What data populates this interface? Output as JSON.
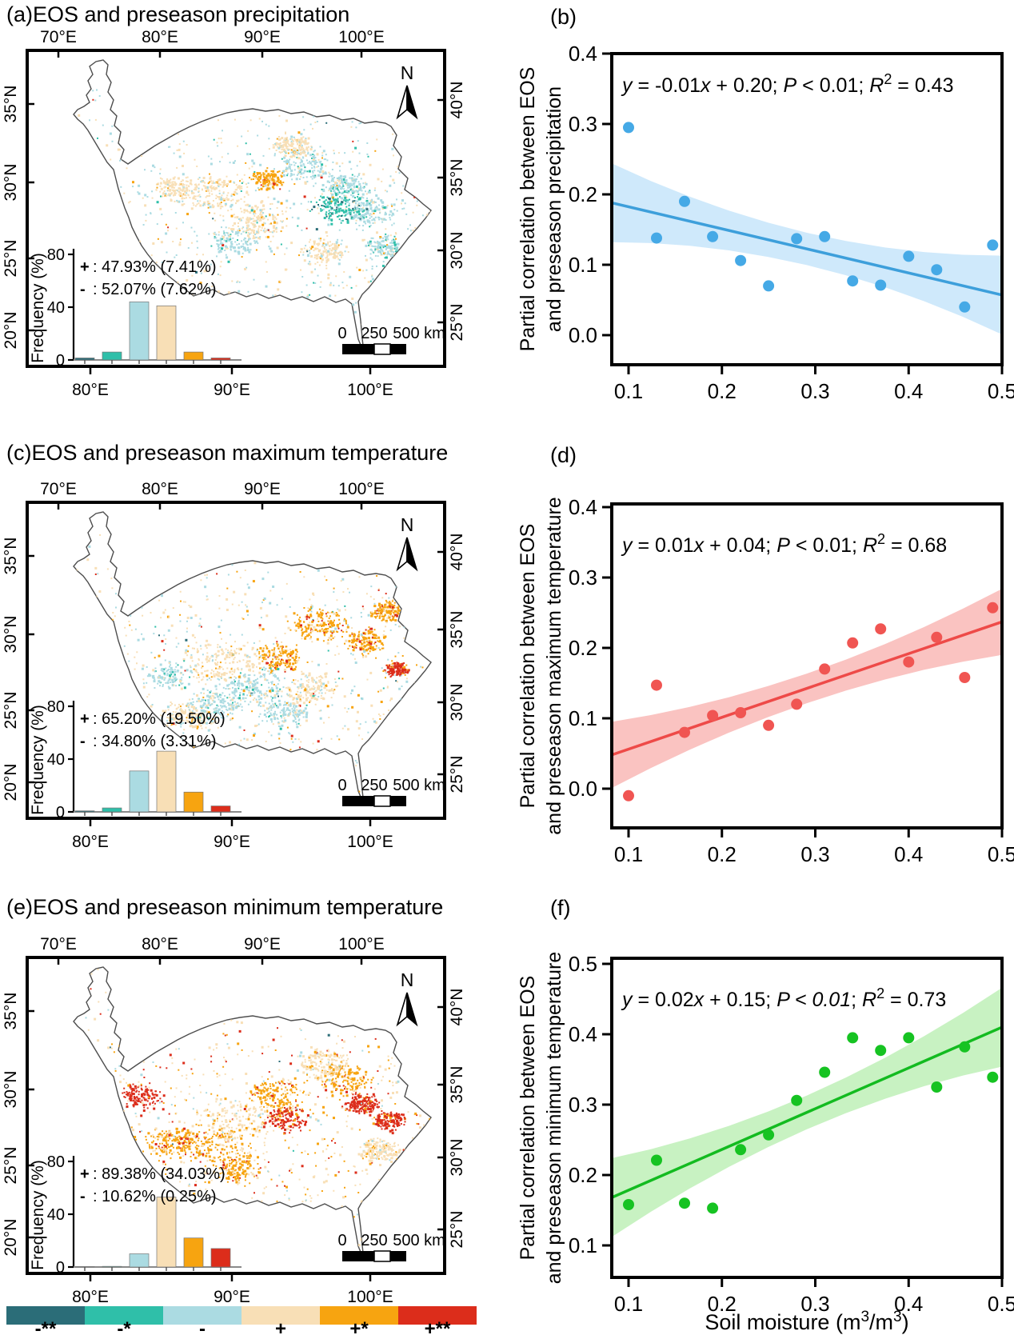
{
  "legend": {
    "labels": [
      "-**",
      "-*",
      "-",
      "+",
      "+*",
      "+**"
    ],
    "colors": [
      "#2b6d78",
      "#2fbfa9",
      "#abdbe2",
      "#f8dfb6",
      "#f7a410",
      "#dc2d1b"
    ]
  },
  "chart_data": [
    {
      "id": "a",
      "type": "map-histogram",
      "letter": "(a)",
      "title": "EOS and preseason precipitation",
      "axes": {
        "top": [
          "70°E",
          "80°E",
          "90°E",
          "100°E"
        ],
        "left": [
          "35°N",
          "30°N",
          "25°N",
          "20°N"
        ],
        "right": [
          "40°N",
          "35°N",
          "30°N",
          "25°N"
        ],
        "bottom": [
          "80°E",
          "90°E",
          "100°E"
        ]
      },
      "north_label": "N",
      "scale_bar": {
        "labels": [
          "0",
          "250",
          "500 km"
        ]
      },
      "histogram": {
        "ylabel": "Frequency (%)",
        "yticks": [
          "0",
          "40",
          "80"
        ],
        "categories": [
          "-**",
          "-*",
          "-",
          "+",
          "+*",
          "+**"
        ],
        "values": [
          1.5,
          6,
          44,
          41,
          6,
          1.5
        ]
      },
      "stats": {
        "plus_symbol": "+",
        "plus_text": ": 47.93% (7.41%)",
        "minus_symbol": "-",
        "minus_text": ": 52.07% (7.62%)"
      }
    },
    {
      "id": "b",
      "type": "scatter",
      "letter": "(b)",
      "ylabel_lines": [
        "Partial correlation between EOS",
        "and preseason precipitation"
      ],
      "equation_segments": [
        {
          "t": "y",
          "i": 1
        },
        {
          "t": " = -0.01",
          "i": 0
        },
        {
          "t": "x",
          "i": 1
        },
        {
          "t": " + 0.20; ",
          "i": 0
        },
        {
          "t": "P",
          "i": 1
        },
        {
          "t": " < 0.01; ",
          "i": 0
        },
        {
          "t": "R",
          "i": 1
        },
        {
          "t": "2",
          "i": 0,
          "sup": 1
        },
        {
          "t": " = 0.43",
          "i": 0
        }
      ],
      "xticks": [
        "0.1",
        "0.2",
        "0.3",
        "0.4",
        "0.5"
      ],
      "yticks": [
        "0.0",
        "0.1",
        "0.2",
        "0.3",
        "0.4"
      ],
      "x": [
        0.1,
        0.13,
        0.16,
        0.19,
        0.22,
        0.25,
        0.28,
        0.31,
        0.34,
        0.37,
        0.4,
        0.43,
        0.46,
        0.49
      ],
      "y": [
        0.295,
        0.138,
        0.19,
        0.14,
        0.106,
        0.07,
        0.137,
        0.14,
        0.077,
        0.071,
        0.112,
        0.093,
        0.04,
        0.128
      ],
      "fit": {
        "x0": 0.082,
        "y0": 0.188,
        "x1": 0.5,
        "y1": 0.057
      },
      "band": {
        "end_half": 0.056,
        "mid_half": 0.023
      },
      "colors": {
        "point": "#45a9e6",
        "line": "#3d9fdb",
        "band": "#cfe9fb"
      }
    },
    {
      "id": "c",
      "type": "map-histogram",
      "letter": "(c)",
      "title": "EOS and preseason maximum temperature",
      "axes": {
        "top": [
          "70°E",
          "80°E",
          "90°E",
          "100°E"
        ],
        "left": [
          "35°N",
          "30°N",
          "25°N",
          "20°N"
        ],
        "right": [
          "40°N",
          "35°N",
          "30°N",
          "25°N"
        ],
        "bottom": [
          "80°E",
          "90°E",
          "100°E"
        ]
      },
      "north_label": "N",
      "scale_bar": {
        "labels": [
          "0",
          "250",
          "500 km"
        ]
      },
      "histogram": {
        "ylabel": "Frequency (%)",
        "yticks": [
          "0",
          "40",
          "80"
        ],
        "categories": [
          "-**",
          "-*",
          "-",
          "+",
          "+*",
          "+**"
        ],
        "values": [
          0.8,
          3,
          31,
          46,
          15,
          4.5
        ]
      },
      "stats": {
        "plus_symbol": "+",
        "plus_text": ": 65.20% (19.50%)",
        "minus_symbol": "-",
        "minus_text": ": 34.80% (3.31%)"
      }
    },
    {
      "id": "d",
      "type": "scatter",
      "letter": "(d)",
      "ylabel_lines": [
        "Partial correlation between EOS",
        "and preseason maximum temperature"
      ],
      "equation_segments": [
        {
          "t": "y",
          "i": 1
        },
        {
          "t": " = 0.01",
          "i": 0
        },
        {
          "t": "x",
          "i": 1
        },
        {
          "t": " + 0.04; ",
          "i": 0
        },
        {
          "t": "P",
          "i": 1
        },
        {
          "t": " < 0.01; ",
          "i": 0
        },
        {
          "t": "R",
          "i": 1
        },
        {
          "t": "2",
          "i": 0,
          "sup": 1
        },
        {
          "t": " = 0.68",
          "i": 0
        }
      ],
      "xticks": [
        "0.1",
        "0.2",
        "0.3",
        "0.4",
        "0.5"
      ],
      "yticks": [
        "0.0",
        "0.1",
        "0.2",
        "0.3",
        "0.4"
      ],
      "x": [
        0.1,
        0.13,
        0.16,
        0.19,
        0.22,
        0.25,
        0.28,
        0.31,
        0.34,
        0.37,
        0.4,
        0.43,
        0.46,
        0.49
      ],
      "y": [
        -0.01,
        0.147,
        0.08,
        0.104,
        0.108,
        0.09,
        0.12,
        0.17,
        0.207,
        0.227,
        0.18,
        0.215,
        0.158,
        0.257
      ],
      "fit": {
        "x0": 0.082,
        "y0": 0.048,
        "x1": 0.5,
        "y1": 0.237
      },
      "band": {
        "end_half": 0.047,
        "mid_half": 0.021
      },
      "colors": {
        "point": "#f05552",
        "line": "#ee4a48",
        "band": "#fac3c1"
      }
    },
    {
      "id": "e",
      "type": "map-histogram",
      "letter": "(e)",
      "title": "EOS and preseason minimum temperature",
      "axes": {
        "top": [
          "70°E",
          "80°E",
          "90°E",
          "100°E"
        ],
        "left": [
          "35°N",
          "30°N",
          "25°N",
          "20°N"
        ],
        "right": [
          "40°N",
          "35°N",
          "30°N",
          "25°N"
        ],
        "bottom": [
          "80°E",
          "90°E",
          "100°E"
        ]
      },
      "north_label": "N",
      "scale_bar": {
        "labels": [
          "0",
          "250",
          "500 km"
        ]
      },
      "histogram": {
        "ylabel": "Frequency (%)",
        "yticks": [
          "0",
          "40",
          "80"
        ],
        "categories": [
          "-**",
          "-*",
          "-",
          "+",
          "+*",
          "+**"
        ],
        "values": [
          0.3,
          0.5,
          10,
          53,
          22,
          14
        ]
      },
      "stats": {
        "plus_symbol": "+",
        "plus_text": ": 89.38% (34.03%)",
        "minus_symbol": "-",
        "minus_text": ": 10.62% (0.25%)"
      }
    },
    {
      "id": "f",
      "type": "scatter",
      "letter": "(f)",
      "ylabel_lines": [
        "Partial correlation between EOS",
        "and preseason minimum temperature"
      ],
      "equation_segments": [
        {
          "t": "y",
          "i": 1
        },
        {
          "t": " = 0.02",
          "i": 0
        },
        {
          "t": "x",
          "i": 1
        },
        {
          "t": " + 0.15; ",
          "i": 0
        },
        {
          "t": "P < 0.01",
          "i": 1
        },
        {
          "t": "; ",
          "i": 0
        },
        {
          "t": "R",
          "i": 1
        },
        {
          "t": "2",
          "i": 0,
          "sup": 1
        },
        {
          "t": " = 0.73",
          "i": 0
        }
      ],
      "xticks": [
        "0.1",
        "0.2",
        "0.3",
        "0.4",
        "0.5"
      ],
      "yticks": [
        "0.1",
        "0.2",
        "0.3",
        "0.4",
        "0.5"
      ],
      "x": [
        0.1,
        0.13,
        0.16,
        0.19,
        0.22,
        0.25,
        0.28,
        0.31,
        0.34,
        0.37,
        0.4,
        0.43,
        0.46,
        0.49
      ],
      "y": [
        0.158,
        0.221,
        0.16,
        0.153,
        0.236,
        0.257,
        0.306,
        0.346,
        0.395,
        0.377,
        0.395,
        0.325,
        0.382,
        0.339
      ],
      "fit": {
        "x0": 0.082,
        "y0": 0.168,
        "x1": 0.5,
        "y1": 0.41
      },
      "band": {
        "end_half": 0.056,
        "mid_half": 0.024
      },
      "colors": {
        "point": "#16c322",
        "line": "#13bb20",
        "band": "#c8f2c2"
      },
      "xlabel_segments": [
        {
          "t": "Soil moisture (m"
        },
        {
          "t": "3",
          "sup": 1
        },
        {
          "t": "/m"
        },
        {
          "t": "3",
          "sup": 1
        },
        {
          "t": ")"
        }
      ]
    }
  ]
}
